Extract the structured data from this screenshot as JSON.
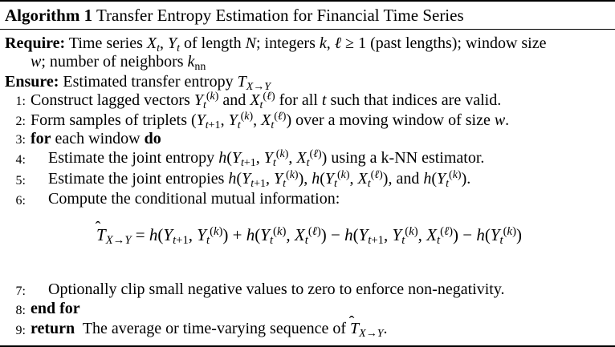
{
  "algorithm": {
    "label": "Algorithm 1",
    "title": "Transfer Entropy Estimation for Financial Time Series"
  },
  "require": {
    "keyword": "Require:",
    "line1": "Time series Xₜ, Yₜ of length N; integers k, ℓ ≥ 1 (past lengths); window size",
    "line2": "w; number of neighbors kₙₙ"
  },
  "ensure": {
    "keyword": "Ensure:",
    "text": "Estimated transfer entropy T"
  },
  "steps": [
    {
      "num": "1:",
      "text": "Construct lagged vectors Yₜ⁽ᵏ⁾ and Xₜ⁽ℓ⁾ for all t such that indices are valid."
    },
    {
      "num": "2:",
      "text": "Form samples of triplets (Yₜ₊₁, Yₜ⁽ᵏ⁾, Xₜ⁽ℓ⁾) over a moving window of size w."
    },
    {
      "num": "3:",
      "kw": "for",
      "text": "each window",
      "kw2": "do"
    },
    {
      "num": "4:",
      "text": "Estimate the joint entropy h(Yₜ₊₁, Yₜ⁽ᵏ⁾, Xₜ⁽ℓ⁾) using a k-NN estimator."
    },
    {
      "num": "5:",
      "text": "Estimate the joint entropies h(Yₜ₊₁, Yₜ⁽ᵏ⁾), h(Yₜ⁽ᵏ⁾, Xₜ⁽ℓ⁾), and h(Yₜ⁽ᵏ⁾)."
    },
    {
      "num": "6:",
      "text": "Compute the conditional mutual information:"
    },
    {
      "num": "7:",
      "text": "Optionally clip small negative values to zero to enforce non-negativity."
    },
    {
      "num": "8:",
      "kw": "end for"
    },
    {
      "num": "9:",
      "kw": "return",
      "text": "The average or time-varying sequence of"
    }
  ],
  "formula": "T̂X→Y = h(Yt+1, Yt(k)) + h(Yt(k), Xt(ℓ)) − h(Yt+1, Yt(k), Xt(ℓ)) − h(Yt(k))"
}
